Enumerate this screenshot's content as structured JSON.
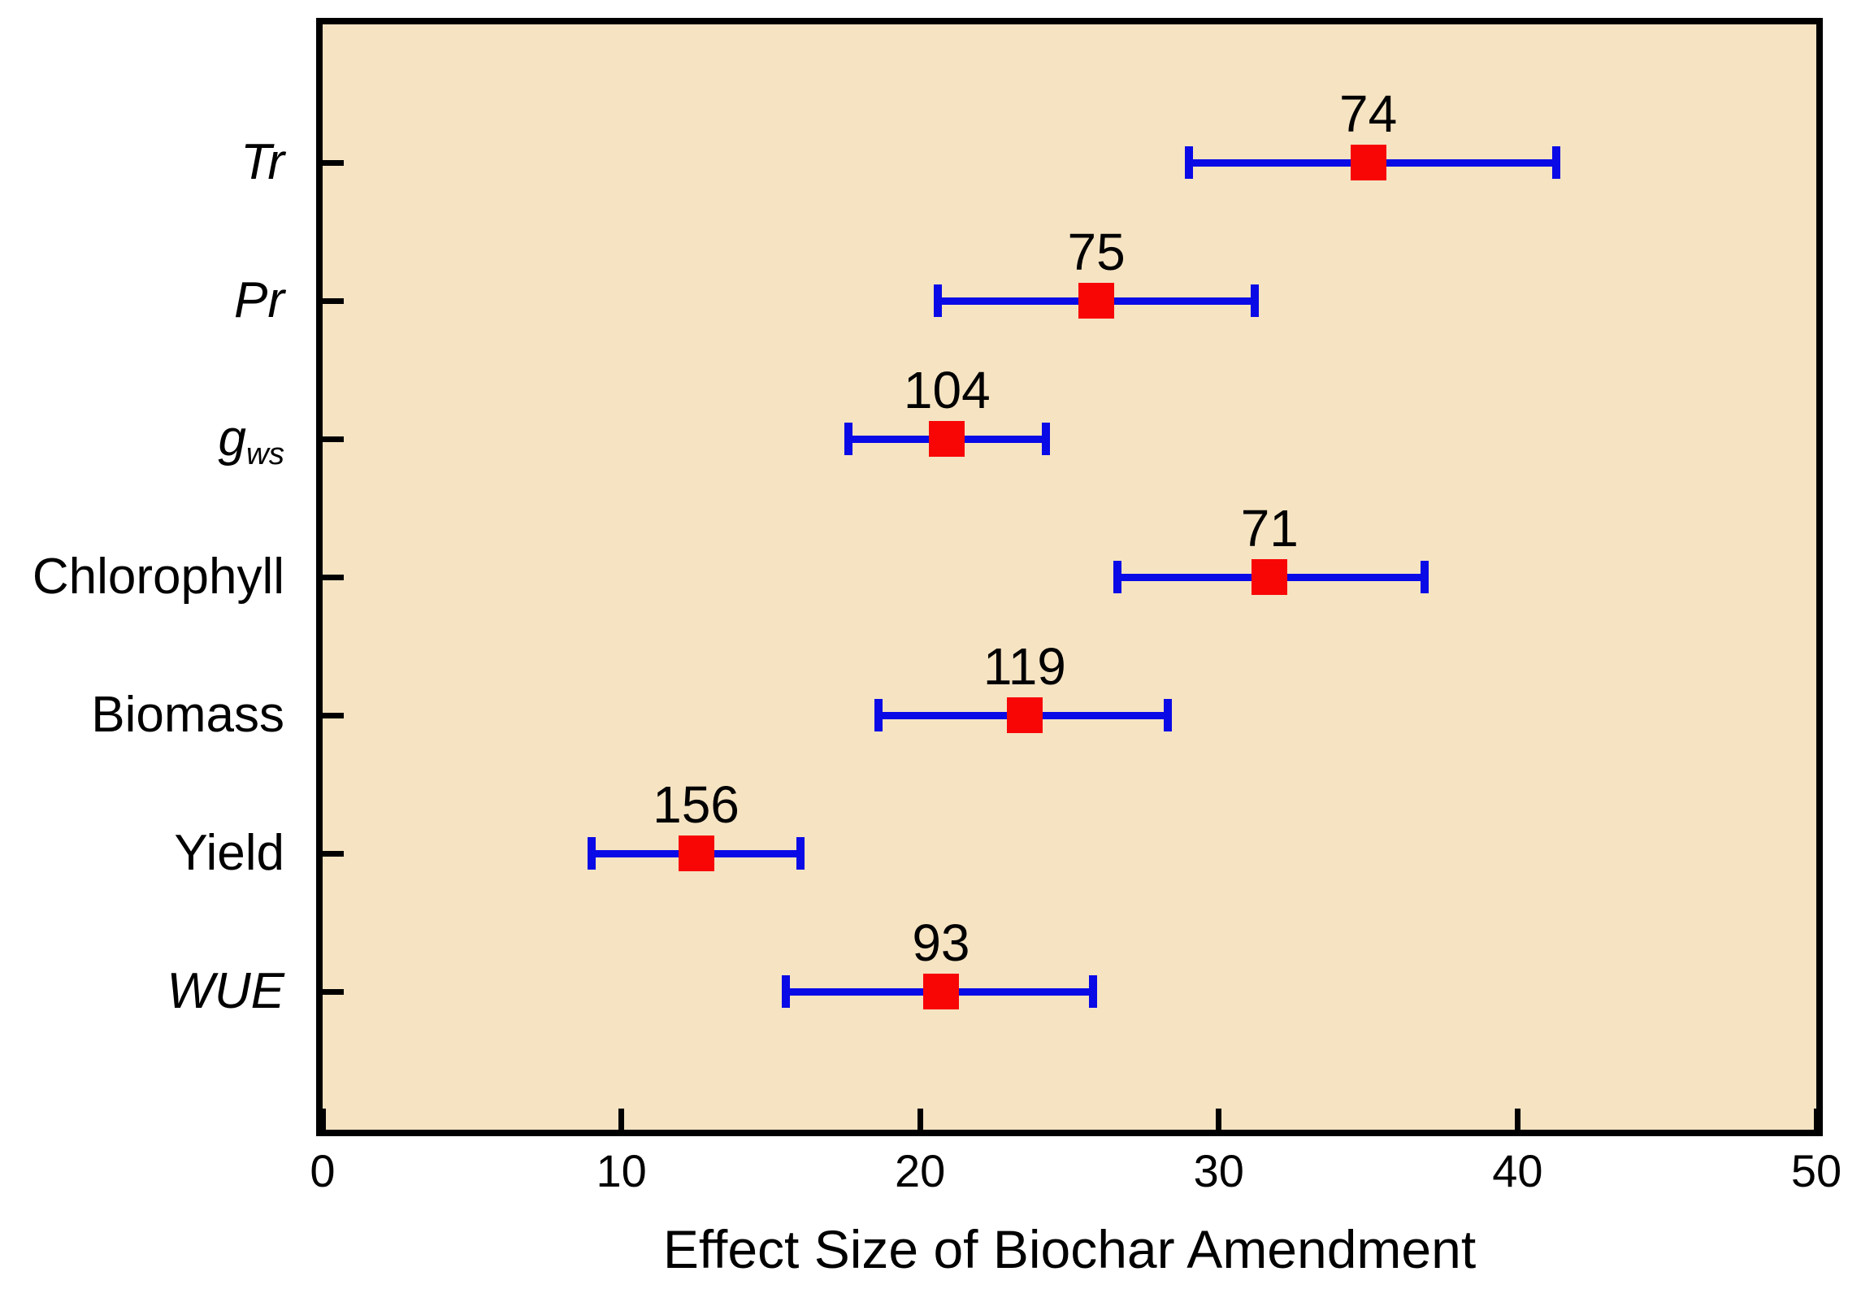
{
  "chart_data": {
    "type": "scatter",
    "subtype": "horizontal-error-bar-dot-plot",
    "title": "",
    "xlabel": "Effect Size of Biochar Amendment",
    "xlim": [
      0,
      50
    ],
    "x_ticks": [
      "0",
      "10",
      "20",
      "30",
      "40",
      "50"
    ],
    "x_tick_values": [
      0,
      10,
      20,
      30,
      40,
      50
    ],
    "grid": false,
    "legend": "none",
    "categories": [
      "Tr",
      "Pr",
      "gws",
      "Chlorophyll",
      "Biomass",
      "Yield",
      "WUE"
    ],
    "rows": [
      {
        "label": "Tr",
        "sub": "",
        "italic": true,
        "n_label": "74",
        "mean": 35.0,
        "ci_low": 29.0,
        "ci_high": 41.3
      },
      {
        "label": "Pr",
        "sub": "",
        "italic": true,
        "n_label": "75",
        "mean": 25.9,
        "ci_low": 20.6,
        "ci_high": 31.2
      },
      {
        "label": "g",
        "sub": "ws",
        "italic": true,
        "n_label": "104",
        "mean": 20.9,
        "ci_low": 17.6,
        "ci_high": 24.2
      },
      {
        "label": "Chlorophyll",
        "sub": "",
        "italic": false,
        "n_label": "71",
        "mean": 31.7,
        "ci_low": 26.6,
        "ci_high": 36.9
      },
      {
        "label": "Biomass",
        "sub": "",
        "italic": false,
        "n_label": "119",
        "mean": 23.5,
        "ci_low": 18.6,
        "ci_high": 28.3
      },
      {
        "label": "Yield",
        "sub": "",
        "italic": false,
        "n_label": "156",
        "mean": 12.5,
        "ci_low": 9.0,
        "ci_high": 16.0
      },
      {
        "label": "WUE",
        "sub": "",
        "italic": true,
        "n_label": "93",
        "mean": 20.7,
        "ci_low": 15.5,
        "ci_high": 25.8
      }
    ],
    "colors": {
      "page_background": "#FFFFFF",
      "plot_background": "#F5E3C2",
      "marker": "#F80606",
      "error_bar": "#0A0AE6",
      "axis": "#000000",
      "text": "#000000"
    }
  }
}
